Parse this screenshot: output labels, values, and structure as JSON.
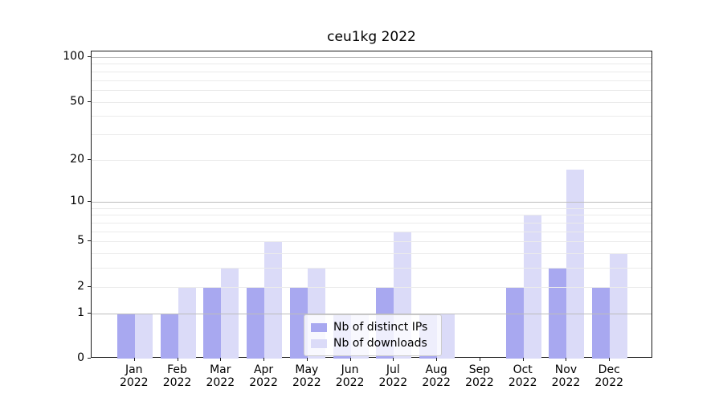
{
  "title": "ceu1kg 2022",
  "chart_data": {
    "type": "bar",
    "categories": [
      "Jan 2022",
      "Feb 2022",
      "Mar 2022",
      "Apr 2022",
      "May 2022",
      "Jun 2022",
      "Jul 2022",
      "Aug 2022",
      "Sep 2022",
      "Oct 2022",
      "Nov 2022",
      "Dec 2022"
    ],
    "series": [
      {
        "name": "Nb of distinct IPs",
        "color": "#a8a8f0",
        "values": [
          1,
          1,
          2,
          2,
          2,
          1,
          2,
          1,
          0,
          2,
          3,
          2
        ]
      },
      {
        "name": "Nb of downloads",
        "color": "#dbdbf8",
        "values": [
          1,
          2,
          3,
          5,
          3,
          1,
          6,
          1,
          0,
          8,
          17,
          4
        ]
      }
    ],
    "title": "ceu1kg 2022",
    "xlabel": "",
    "ylabel": "",
    "yscale": "log1p",
    "ylim": [
      0,
      109
    ],
    "y_tick_values": [
      0,
      1,
      2,
      5,
      10,
      20,
      50,
      100
    ],
    "y_tick_labels": [
      "0",
      "1",
      "2",
      "5",
      "10",
      "20",
      "50",
      "100"
    ],
    "major_gridline_values": [
      1,
      10,
      100
    ],
    "minor_gridline_values": [
      2,
      3,
      4,
      5,
      6,
      7,
      8,
      9,
      20,
      30,
      40,
      50,
      60,
      70,
      80,
      90
    ],
    "grid": "on",
    "legend_position": "lower-center-inside"
  },
  "colors": {
    "bar_distinct_ips": "#a8a8f0",
    "bar_downloads": "#dbdbf8",
    "major_gridline": "#bdbdbd",
    "minor_gridline": "#ebebeb",
    "axis_spine": "#1a1a1a",
    "text": "#000000",
    "legend_border": "#cccccc",
    "legend_background": "rgba(255,255,255,0.8)"
  }
}
